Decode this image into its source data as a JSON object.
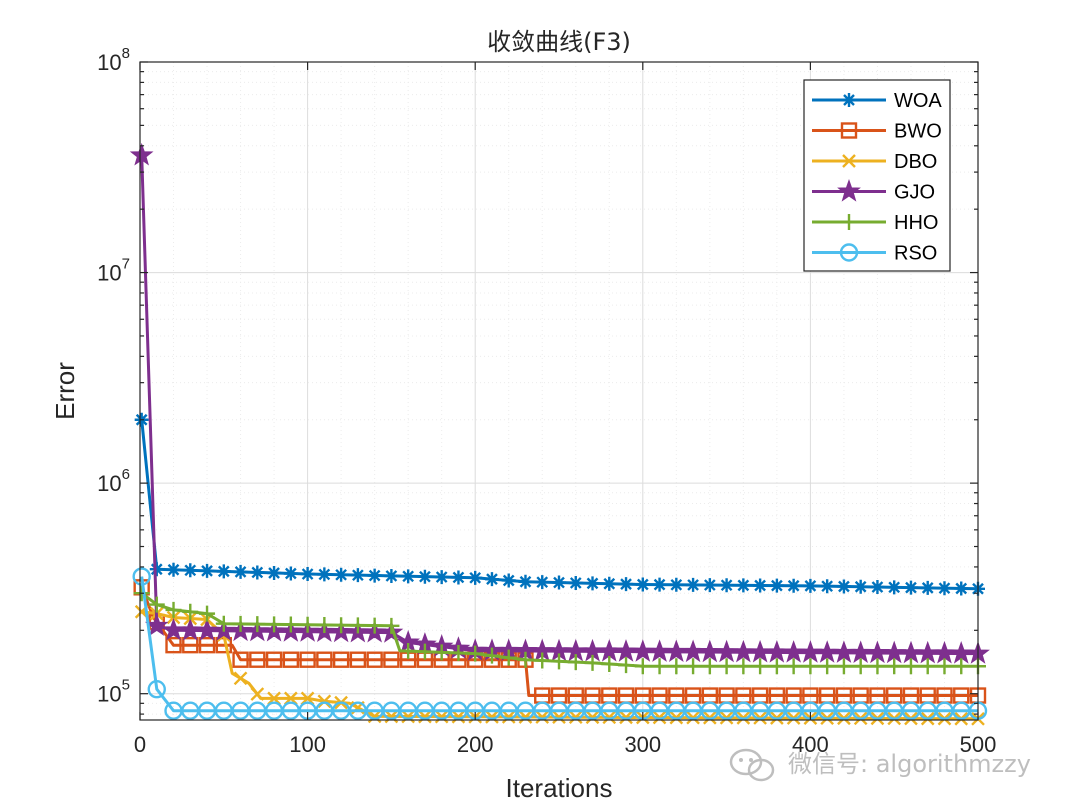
{
  "chart_data": {
    "type": "line",
    "title": "收敛曲线(F3)",
    "xlabel": "Iterations",
    "ylabel": "Error",
    "xlim": [
      0,
      500
    ],
    "ylim": [
      75000,
      100000000
    ],
    "yscale": "log",
    "x_ticks": [
      0,
      100,
      200,
      300,
      400,
      500
    ],
    "x_tick_labels": [
      "0",
      "100",
      "200",
      "300",
      "400",
      "500"
    ],
    "y_ticks": [
      100000,
      1000000,
      10000000,
      100000000
    ],
    "y_tick_labels": [
      {
        "base": "10",
        "exp": "5"
      },
      {
        "base": "10",
        "exp": "6"
      },
      {
        "base": "10",
        "exp": "7"
      },
      {
        "base": "10",
        "exp": "8"
      }
    ],
    "grid": true,
    "legend_position": "top-right",
    "series": [
      {
        "name": "WOA",
        "color": "#0072BD",
        "marker": "asterisk",
        "points": [
          [
            1,
            2000000
          ],
          [
            10,
            390000
          ],
          [
            100,
            370000
          ],
          [
            200,
            355000
          ],
          [
            230,
            340000
          ],
          [
            300,
            330000
          ],
          [
            400,
            325000
          ],
          [
            500,
            315000
          ]
        ]
      },
      {
        "name": "BWO",
        "color": "#D95319",
        "marker": "square",
        "points": [
          [
            1,
            320000
          ],
          [
            8,
            230000
          ],
          [
            20,
            170000
          ],
          [
            55,
            170000
          ],
          [
            60,
            145000
          ],
          [
            230,
            145000
          ],
          [
            232,
            98000
          ],
          [
            500,
            98000
          ]
        ]
      },
      {
        "name": "DBO",
        "color": "#EDB120",
        "marker": "x",
        "points": [
          [
            1,
            245000
          ],
          [
            10,
            240000
          ],
          [
            20,
            230000
          ],
          [
            40,
            225000
          ],
          [
            50,
            190000
          ],
          [
            55,
            125000
          ],
          [
            65,
            112000
          ],
          [
            72,
            95000
          ],
          [
            100,
            95000
          ],
          [
            110,
            92000
          ],
          [
            125,
            90000
          ],
          [
            140,
            78000
          ],
          [
            500,
            76000
          ]
        ]
      },
      {
        "name": "GJO",
        "color": "#7E2F8E",
        "marker": "star",
        "points": [
          [
            1,
            36000000
          ],
          [
            10,
            210000
          ],
          [
            20,
            200000
          ],
          [
            150,
            195000
          ],
          [
            155,
            185000
          ],
          [
            160,
            175000
          ],
          [
            200,
            160000
          ],
          [
            500,
            155000
          ]
        ]
      },
      {
        "name": "HHO",
        "color": "#77AC30",
        "marker": "plus",
        "points": [
          [
            1,
            300000
          ],
          [
            10,
            265000
          ],
          [
            20,
            250000
          ],
          [
            40,
            240000
          ],
          [
            50,
            215000
          ],
          [
            150,
            210000
          ],
          [
            155,
            160000
          ],
          [
            200,
            155000
          ],
          [
            230,
            145000
          ],
          [
            270,
            140000
          ],
          [
            300,
            135000
          ],
          [
            500,
            135000
          ]
        ]
      },
      {
        "name": "RSO",
        "color": "#4DBEEE",
        "marker": "circle",
        "points": [
          [
            1,
            360000
          ],
          [
            10,
            105000
          ],
          [
            20,
            83000
          ],
          [
            500,
            83000
          ]
        ]
      }
    ]
  },
  "watermark": "微信号: algorithmzzy"
}
